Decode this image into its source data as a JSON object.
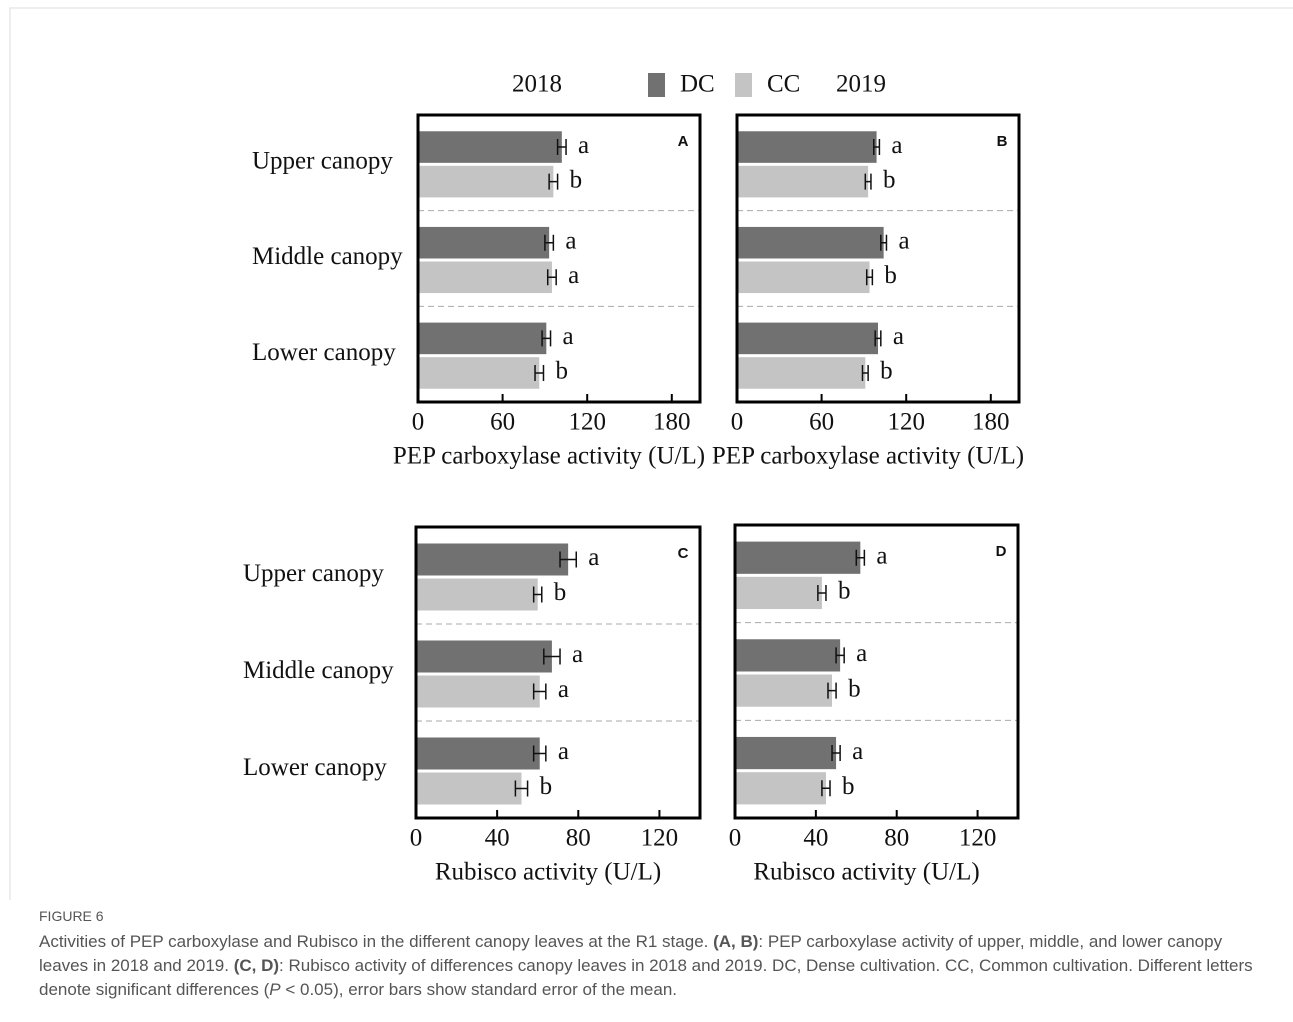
{
  "chart_data": [
    {
      "type": "bar",
      "panel": "A",
      "year": "2018",
      "categories": [
        "Upper canopy",
        "Middle canopy",
        "Lower canopy"
      ],
      "series": [
        {
          "name": "DC",
          "color": "#717171",
          "values": [
            102,
            93,
            91
          ],
          "errors": [
            3,
            3,
            3
          ],
          "letters": [
            "a",
            "a",
            "a"
          ]
        },
        {
          "name": "CC",
          "color": "#c4c4c4",
          "values": [
            96,
            95,
            86
          ],
          "errors": [
            3,
            3,
            3
          ],
          "letters": [
            "b",
            "a",
            "b"
          ]
        }
      ],
      "xlabel": "PEP carboxylase activity (U/L)",
      "xlim": [
        0,
        200
      ],
      "xticks": [
        0,
        60,
        120,
        180
      ],
      "separators": true
    },
    {
      "type": "bar",
      "panel": "B",
      "year": "2019",
      "categories": [
        null,
        null,
        null
      ],
      "series": [
        {
          "name": "DC",
          "color": "#717171",
          "values": [
            99,
            104,
            100
          ],
          "errors": [
            2,
            2,
            2
          ],
          "letters": [
            "a",
            "a",
            "a"
          ]
        },
        {
          "name": "CC",
          "color": "#c4c4c4",
          "values": [
            93,
            94,
            91
          ],
          "errors": [
            2,
            2,
            2
          ],
          "letters": [
            "b",
            "b",
            "b"
          ]
        }
      ],
      "xlabel": "PEP carboxylase activity (U/L)",
      "xlim": [
        0,
        200
      ],
      "xticks": [
        0,
        60,
        120,
        180
      ],
      "separators": true
    },
    {
      "type": "bar",
      "panel": "C",
      "categories": [
        "Upper canopy",
        "Middle canopy",
        "Lower canopy"
      ],
      "series": [
        {
          "name": "DC",
          "color": "#717171",
          "values": [
            75,
            67,
            61
          ],
          "errors": [
            4,
            4,
            3
          ],
          "letters": [
            "a",
            "a",
            "a"
          ]
        },
        {
          "name": "CC",
          "color": "#c4c4c4",
          "values": [
            60,
            61,
            52
          ],
          "errors": [
            2,
            3,
            3
          ],
          "letters": [
            "b",
            "a",
            "b"
          ]
        }
      ],
      "xlabel": "Rubisco activity (U/L)",
      "xlim": [
        0,
        140
      ],
      "xticks": [
        0,
        40,
        80,
        120
      ],
      "separators": true
    },
    {
      "type": "bar",
      "panel": "D",
      "categories": [
        null,
        null,
        null
      ],
      "series": [
        {
          "name": "DC",
          "color": "#717171",
          "values": [
            62,
            52,
            50
          ],
          "errors": [
            2,
            2,
            2
          ],
          "letters": [
            "a",
            "a",
            "a"
          ]
        },
        {
          "name": "CC",
          "color": "#c4c4c4",
          "values": [
            43,
            48,
            45
          ],
          "errors": [
            2,
            2,
            2
          ],
          "letters": [
            "b",
            "b",
            "b"
          ]
        }
      ],
      "xlabel": "Rubisco activity (U/L)",
      "xlim": [
        0,
        140
      ],
      "xticks": [
        0,
        40,
        80,
        120
      ],
      "separators": true
    }
  ],
  "caption": {
    "label": "FIGURE 6",
    "parts": [
      {
        "text": "Activities of PEP carboxylase and Rubisco in the different canopy leaves at the R1 stage. "
      },
      {
        "text": "(A, B)",
        "bold": true
      },
      {
        "text": ": PEP carboxylase activity of upper, middle, and lower canopy leaves in 2018 and 2019. "
      },
      {
        "text": "(C, D)",
        "bold": true
      },
      {
        "text": ": Rubisco activity of differences canopy leaves in 2018 and 2019. DC, Dense cultivation. CC, Common cultivation. Different letters denote significant differences ("
      },
      {
        "text": "P",
        "italic": true
      },
      {
        "text": " < 0.05), error bars show standard error of the mean."
      }
    ]
  }
}
